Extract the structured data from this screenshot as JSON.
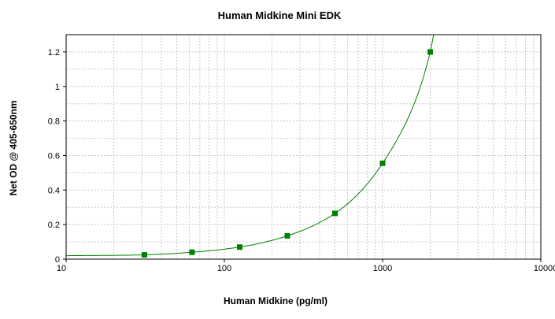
{
  "chart_data": {
    "type": "scatter",
    "title": "Human Midkine Mini EDK",
    "xlabel": "Human Midkine (pg/ml)",
    "ylabel": "Net OD @ 405-650nm",
    "x_scale": "log",
    "xlim": [
      10,
      10000
    ],
    "ylim": [
      0,
      1.3
    ],
    "x_ticks": [
      10,
      100,
      1000,
      10000
    ],
    "x_tick_labels": [
      "10",
      "100",
      "1000",
      "10000"
    ],
    "y_ticks": [
      0,
      0.2,
      0.4,
      0.6,
      0.8,
      1,
      1.2
    ],
    "y_tick_labels": [
      "0",
      "0.2",
      "0.4",
      "0.6",
      "0.8",
      "1",
      "1.2"
    ],
    "grid": true,
    "series": [
      {
        "x": [
          31.25,
          62.5,
          125,
          250,
          500,
          1000,
          2000
        ],
        "y": [
          0.025,
          0.04,
          0.07,
          0.135,
          0.265,
          0.555,
          1.2
        ],
        "marker": "square",
        "color": "#008000"
      }
    ],
    "fit_curve": {
      "type": "smooth",
      "color": "#008000",
      "x": [
        10,
        31.25,
        62.5,
        125,
        250,
        500,
        1000,
        2000,
        2100
      ],
      "y": [
        0.02,
        0.025,
        0.04,
        0.07,
        0.135,
        0.265,
        0.555,
        1.2,
        1.3
      ]
    }
  }
}
